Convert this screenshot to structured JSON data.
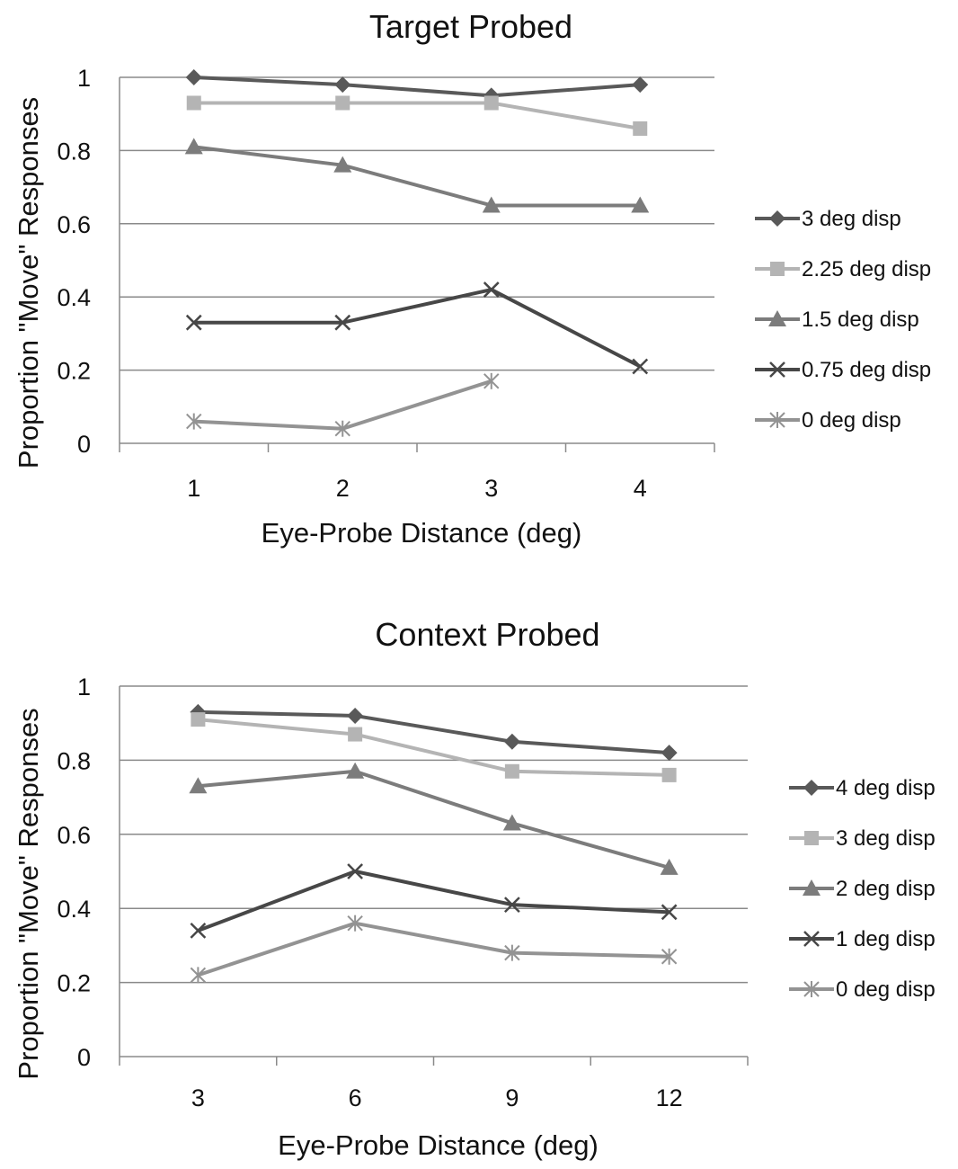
{
  "chart_data": [
    {
      "type": "line",
      "title": "Target Probed",
      "xlabel": "Eye-Probe Distance (deg)",
      "ylabel": "Proportion \"Move\" Responses",
      "categories": [
        "1",
        "2",
        "3",
        "4"
      ],
      "ylim": [
        0,
        1
      ],
      "yticks": [
        "0",
        "0.2",
        "0.4",
        "0.6",
        "0.8",
        "1"
      ],
      "grid": true,
      "legend_position": "right",
      "series": [
        {
          "name": "3 deg disp",
          "values": [
            1.0,
            0.98,
            0.95,
            0.98
          ],
          "color": "#595959",
          "marker": "diamond"
        },
        {
          "name": "2.25 deg disp",
          "values": [
            0.93,
            0.93,
            0.93,
            0.86
          ],
          "color": "#b4b4b4",
          "marker": "square"
        },
        {
          "name": "1.5 deg disp",
          "values": [
            0.81,
            0.76,
            0.65,
            0.65
          ],
          "color": "#7c7c7c",
          "marker": "triangle"
        },
        {
          "name": "0.75 deg disp",
          "values": [
            0.33,
            0.33,
            0.42,
            0.21
          ],
          "color": "#474747",
          "marker": "x"
        },
        {
          "name": "0 deg disp",
          "values": [
            0.06,
            0.04,
            0.17,
            null
          ],
          "color": "#939393",
          "marker": "star"
        }
      ]
    },
    {
      "type": "line",
      "title": "Context Probed",
      "xlabel": "Eye-Probe Distance (deg)",
      "ylabel": "Proportion \"Move\" Responses",
      "categories": [
        "3",
        "6",
        "9",
        "12"
      ],
      "ylim": [
        0,
        1
      ],
      "yticks": [
        "0",
        "0.2",
        "0.4",
        "0.6",
        "0.8",
        "1"
      ],
      "grid": true,
      "legend_position": "right",
      "series": [
        {
          "name": "4 deg disp",
          "values": [
            0.93,
            0.92,
            0.85,
            0.82
          ],
          "color": "#595959",
          "marker": "diamond"
        },
        {
          "name": "3 deg disp",
          "values": [
            0.91,
            0.87,
            0.77,
            0.76
          ],
          "color": "#b4b4b4",
          "marker": "square"
        },
        {
          "name": "2 deg disp",
          "values": [
            0.73,
            0.77,
            0.63,
            0.51
          ],
          "color": "#7c7c7c",
          "marker": "triangle"
        },
        {
          "name": "1 deg disp",
          "values": [
            0.34,
            0.5,
            0.41,
            0.39
          ],
          "color": "#474747",
          "marker": "x"
        },
        {
          "name": "0 deg disp",
          "values": [
            0.22,
            0.36,
            0.28,
            0.27
          ],
          "color": "#939393",
          "marker": "star"
        }
      ]
    }
  ]
}
